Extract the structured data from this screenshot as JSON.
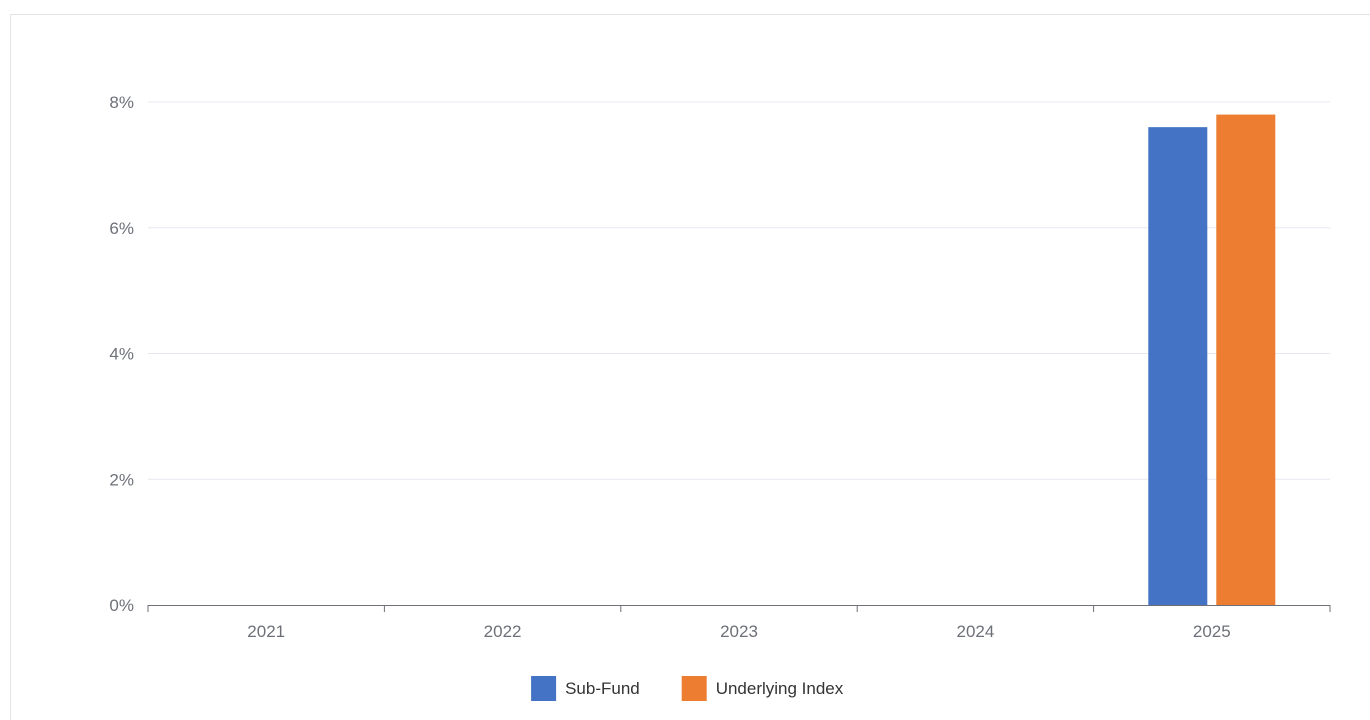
{
  "chart_data": {
    "type": "bar",
    "categories": [
      "2021",
      "2022",
      "2023",
      "2024",
      "2025"
    ],
    "series": [
      {
        "name": "Sub-Fund",
        "color": "#4472c4",
        "values": [
          null,
          null,
          null,
          null,
          7.6
        ]
      },
      {
        "name": "Underlying Index",
        "color": "#ed7d31",
        "values": [
          null,
          null,
          null,
          null,
          7.8
        ]
      }
    ],
    "yticks": [
      "0%",
      "2%",
      "4%",
      "6%",
      "8%"
    ],
    "ylim": [
      0,
      8
    ],
    "grid": true,
    "legend": "bottom-center"
  }
}
